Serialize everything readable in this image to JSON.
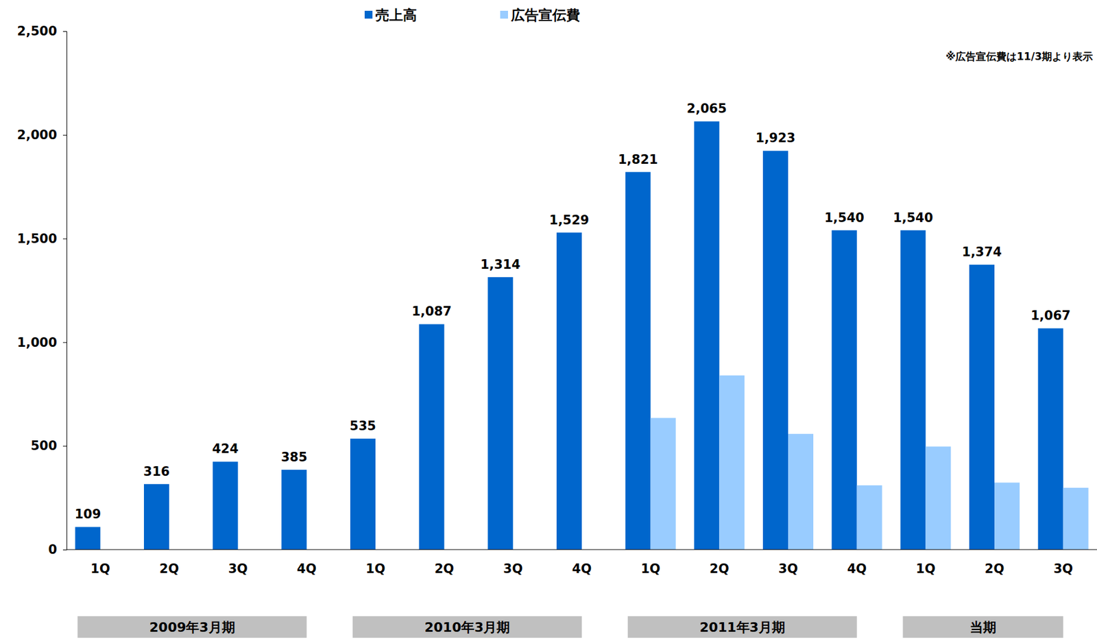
{
  "chart_data": {
    "type": "bar",
    "subtitle": "※広告宣伝費は11/3期より表示",
    "categories": [
      "1Q",
      "2Q",
      "3Q",
      "4Q",
      "1Q",
      "2Q",
      "3Q",
      "4Q",
      "1Q",
      "2Q",
      "3Q",
      "4Q",
      "1Q",
      "2Q",
      "3Q"
    ],
    "category_groups": [
      {
        "label": "2009年3月期",
        "count": 4
      },
      {
        "label": "2010年3月期",
        "count": 4
      },
      {
        "label": "2011年3月期",
        "count": 4
      },
      {
        "label": "当期",
        "count": 3
      }
    ],
    "series": [
      {
        "name": "売上高",
        "color": "#0066cc",
        "data_labels": true,
        "values": [
          109,
          316,
          424,
          385,
          535,
          1087,
          1314,
          1529,
          1821,
          2065,
          1923,
          1540,
          1540,
          1374,
          1067
        ],
        "value_labels": [
          "109",
          "316",
          "424",
          "385",
          "535",
          "1,087",
          "1,314",
          "1,529",
          "1,821",
          "2,065",
          "1,923",
          "1,540",
          "1,540",
          "1,374",
          "1,067"
        ]
      },
      {
        "name": "広告宣伝費",
        "color": "#99ccff",
        "values": [
          null,
          null,
          null,
          null,
          null,
          null,
          null,
          null,
          635,
          840,
          558,
          310,
          497,
          323,
          298
        ]
      }
    ],
    "ylim": [
      0,
      2500
    ],
    "yticks": [
      0,
      500,
      {
        "value": 1000,
        "label": "1,000"
      },
      {
        "value": 1500,
        "label": "1,500"
      },
      {
        "value": 2000,
        "label": "2,000"
      },
      {
        "value": 2500,
        "label": "2,500"
      }
    ],
    "grid": false,
    "legend": "top"
  }
}
